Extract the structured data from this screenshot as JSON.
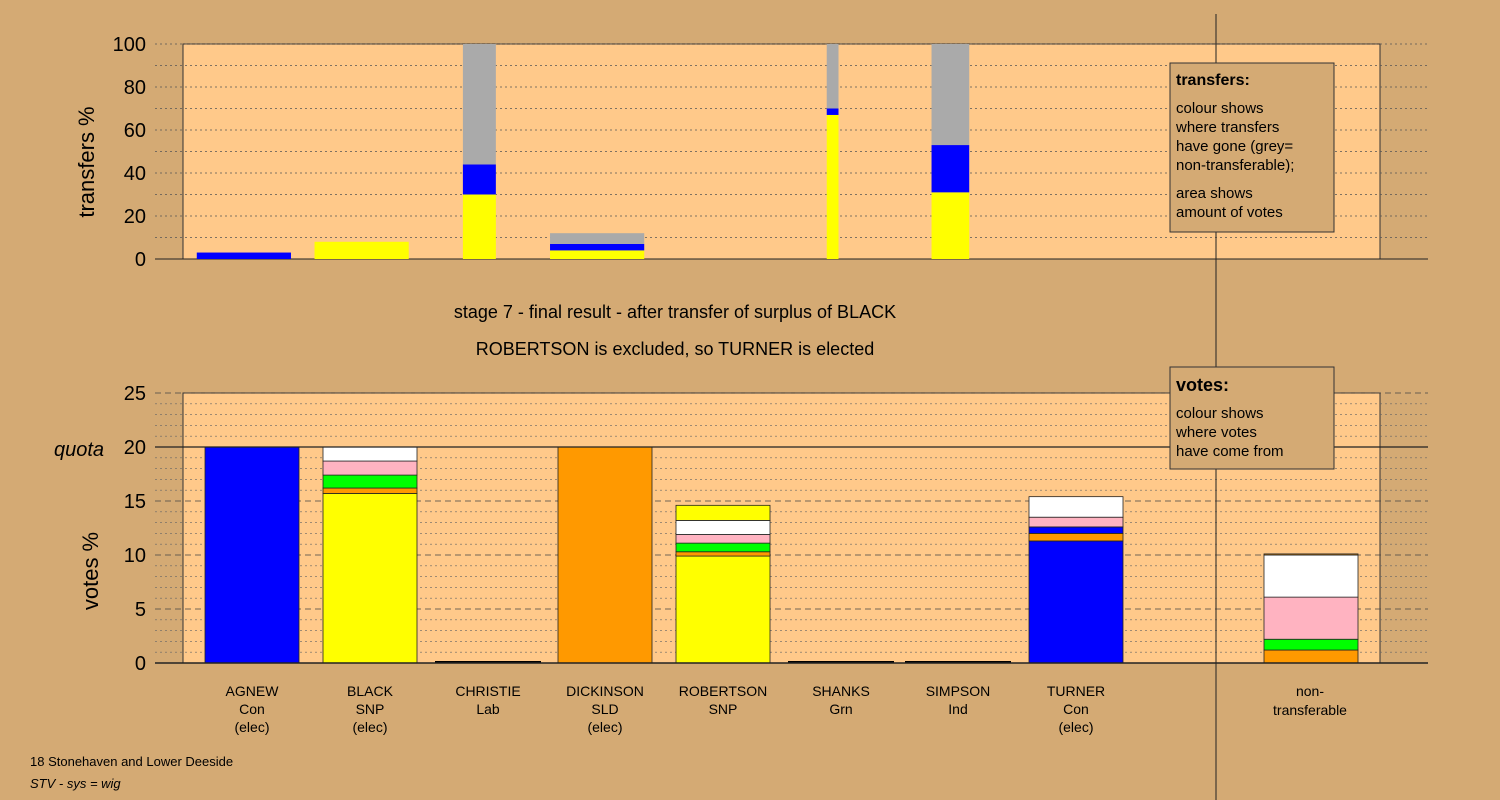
{
  "colors": {
    "background": "#d4aa74",
    "plot_bg": "#ffc98a",
    "legend_bg": "#d4aa74",
    "con": "#0000ff",
    "snp": "#ffff00",
    "lab": "#ff0000",
    "sld": "#ff9900",
    "grn": "#00ff00",
    "ind": "#ffb3c1",
    "other": "#ffffff",
    "nontransferable": "#aaaaaa"
  },
  "header": {
    "stage_line": "stage 7 - final result - after transfer of surplus of BLACK",
    "outcome_line": "ROBERTSON is excluded, so TURNER is elected"
  },
  "footer": {
    "ward": "18 Stonehaven and Lower Deeside",
    "system": "STV - sys = wig"
  },
  "legend_transfers": {
    "title": "transfers:",
    "line1": "colour shows",
    "line2": "where transfers",
    "line3": "have gone (grey=",
    "line4": "non-transferable);",
    "line5": "area shows",
    "line6": "amount of votes"
  },
  "legend_votes": {
    "title": "votes:",
    "line1": "colour shows",
    "line2": "where votes",
    "line3": "have come from"
  },
  "candidates": [
    {
      "name": "AGNEW",
      "party": "Con",
      "status": "(elec)"
    },
    {
      "name": "BLACK",
      "party": "SNP",
      "status": "(elec)"
    },
    {
      "name": "CHRISTIE",
      "party": "Lab",
      "status": ""
    },
    {
      "name": "DICKINSON",
      "party": "SLD",
      "status": "(elec)"
    },
    {
      "name": "ROBERTSON",
      "party": "SNP",
      "status": ""
    },
    {
      "name": "SHANKS",
      "party": "Grn",
      "status": ""
    },
    {
      "name": "SIMPSON",
      "party": "Ind",
      "status": ""
    },
    {
      "name": "TURNER",
      "party": "Con",
      "status": "(elec)"
    }
  ],
  "nontransferable_label": {
    "line1": "non-",
    "line2": "transferable"
  },
  "chart_data": [
    {
      "type": "bar",
      "ylabel": "transfers %",
      "ylim": [
        0,
        100
      ],
      "yticks": [
        0,
        20,
        40,
        60,
        80,
        100
      ],
      "grid": true,
      "legend_position": "top-right",
      "bars": [
        {
          "candidate": "AGNEW",
          "x_from": 0.1,
          "x_to": 0.9,
          "segments": [
            {
              "party": "con",
              "from": 0,
              "to": 3
            }
          ]
        },
        {
          "candidate": "BLACK",
          "x_from": 1.1,
          "x_to": 1.9,
          "segments": [
            {
              "party": "snp",
              "from": 0,
              "to": 8
            }
          ]
        },
        {
          "candidate": "CHRISTIE",
          "x_from": 2.36,
          "x_to": 2.64,
          "segments": [
            {
              "party": "snp",
              "from": 0,
              "to": 30
            },
            {
              "party": "con",
              "from": 30,
              "to": 44
            },
            {
              "party": "nontransferable",
              "from": 44,
              "to": 100
            }
          ]
        },
        {
          "candidate": "DICKINSON",
          "x_from": 3.1,
          "x_to": 3.9,
          "segments": [
            {
              "party": "snp",
              "from": 0,
              "to": 4
            },
            {
              "party": "con",
              "from": 4,
              "to": 7
            },
            {
              "party": "nontransferable",
              "from": 7,
              "to": 12
            }
          ]
        },
        {
          "candidate": "SHANKS",
          "x_from": 5.45,
          "x_to": 5.55,
          "segments": [
            {
              "party": "snp",
              "from": 0,
              "to": 67
            },
            {
              "party": "con",
              "from": 67,
              "to": 70
            },
            {
              "party": "nontransferable",
              "from": 70,
              "to": 100
            }
          ]
        },
        {
          "candidate": "SIMPSON",
          "x_from": 6.34,
          "x_to": 6.66,
          "segments": [
            {
              "party": "snp",
              "from": 0,
              "to": 31
            },
            {
              "party": "con",
              "from": 31,
              "to": 53
            },
            {
              "party": "nontransferable",
              "from": 53,
              "to": 100
            }
          ]
        }
      ]
    },
    {
      "type": "bar",
      "ylabel": "votes %",
      "ylim": [
        0,
        25
      ],
      "yticks": [
        0,
        5,
        10,
        15,
        20,
        25
      ],
      "quota": 20,
      "quota_label": "quota",
      "grid": true,
      "legend_position": "top-right",
      "bars": [
        {
          "candidate": "AGNEW",
          "segments": [
            {
              "party": "con",
              "value": 20
            }
          ]
        },
        {
          "candidate": "BLACK",
          "segments": [
            {
              "party": "snp",
              "value": 15.7
            },
            {
              "party": "sld",
              "value": 0.5
            },
            {
              "party": "grn",
              "value": 1.2
            },
            {
              "party": "ind",
              "value": 1.3
            },
            {
              "party": "other",
              "value": 1.3
            }
          ]
        },
        {
          "candidate": "CHRISTIE",
          "segments": []
        },
        {
          "candidate": "DICKINSON",
          "segments": [
            {
              "party": "sld",
              "value": 20
            }
          ]
        },
        {
          "candidate": "ROBERTSON",
          "segments": [
            {
              "party": "snp",
              "value": 9.9
            },
            {
              "party": "sld",
              "value": 0.4
            },
            {
              "party": "grn",
              "value": 0.8
            },
            {
              "party": "ind",
              "value": 0.8
            },
            {
              "party": "other",
              "value": 1.3
            },
            {
              "party": "snp",
              "value": 1.4
            }
          ]
        },
        {
          "candidate": "SHANKS",
          "segments": []
        },
        {
          "candidate": "SIMPSON",
          "segments": []
        },
        {
          "candidate": "TURNER",
          "segments": [
            {
              "party": "con",
              "value": 11.3
            },
            {
              "party": "sld",
              "value": 0.7
            },
            {
              "party": "con",
              "value": 0.6
            },
            {
              "party": "ind",
              "value": 0.9
            },
            {
              "party": "other",
              "value": 1.9
            }
          ]
        },
        {
          "candidate": "non-transferable",
          "segments": [
            {
              "party": "sld",
              "value": 1.2
            },
            {
              "party": "grn",
              "value": 1.0
            },
            {
              "party": "ind",
              "value": 3.9
            },
            {
              "party": "other",
              "value": 3.9
            },
            {
              "party": "sld",
              "value": 0.1
            }
          ]
        }
      ]
    }
  ]
}
